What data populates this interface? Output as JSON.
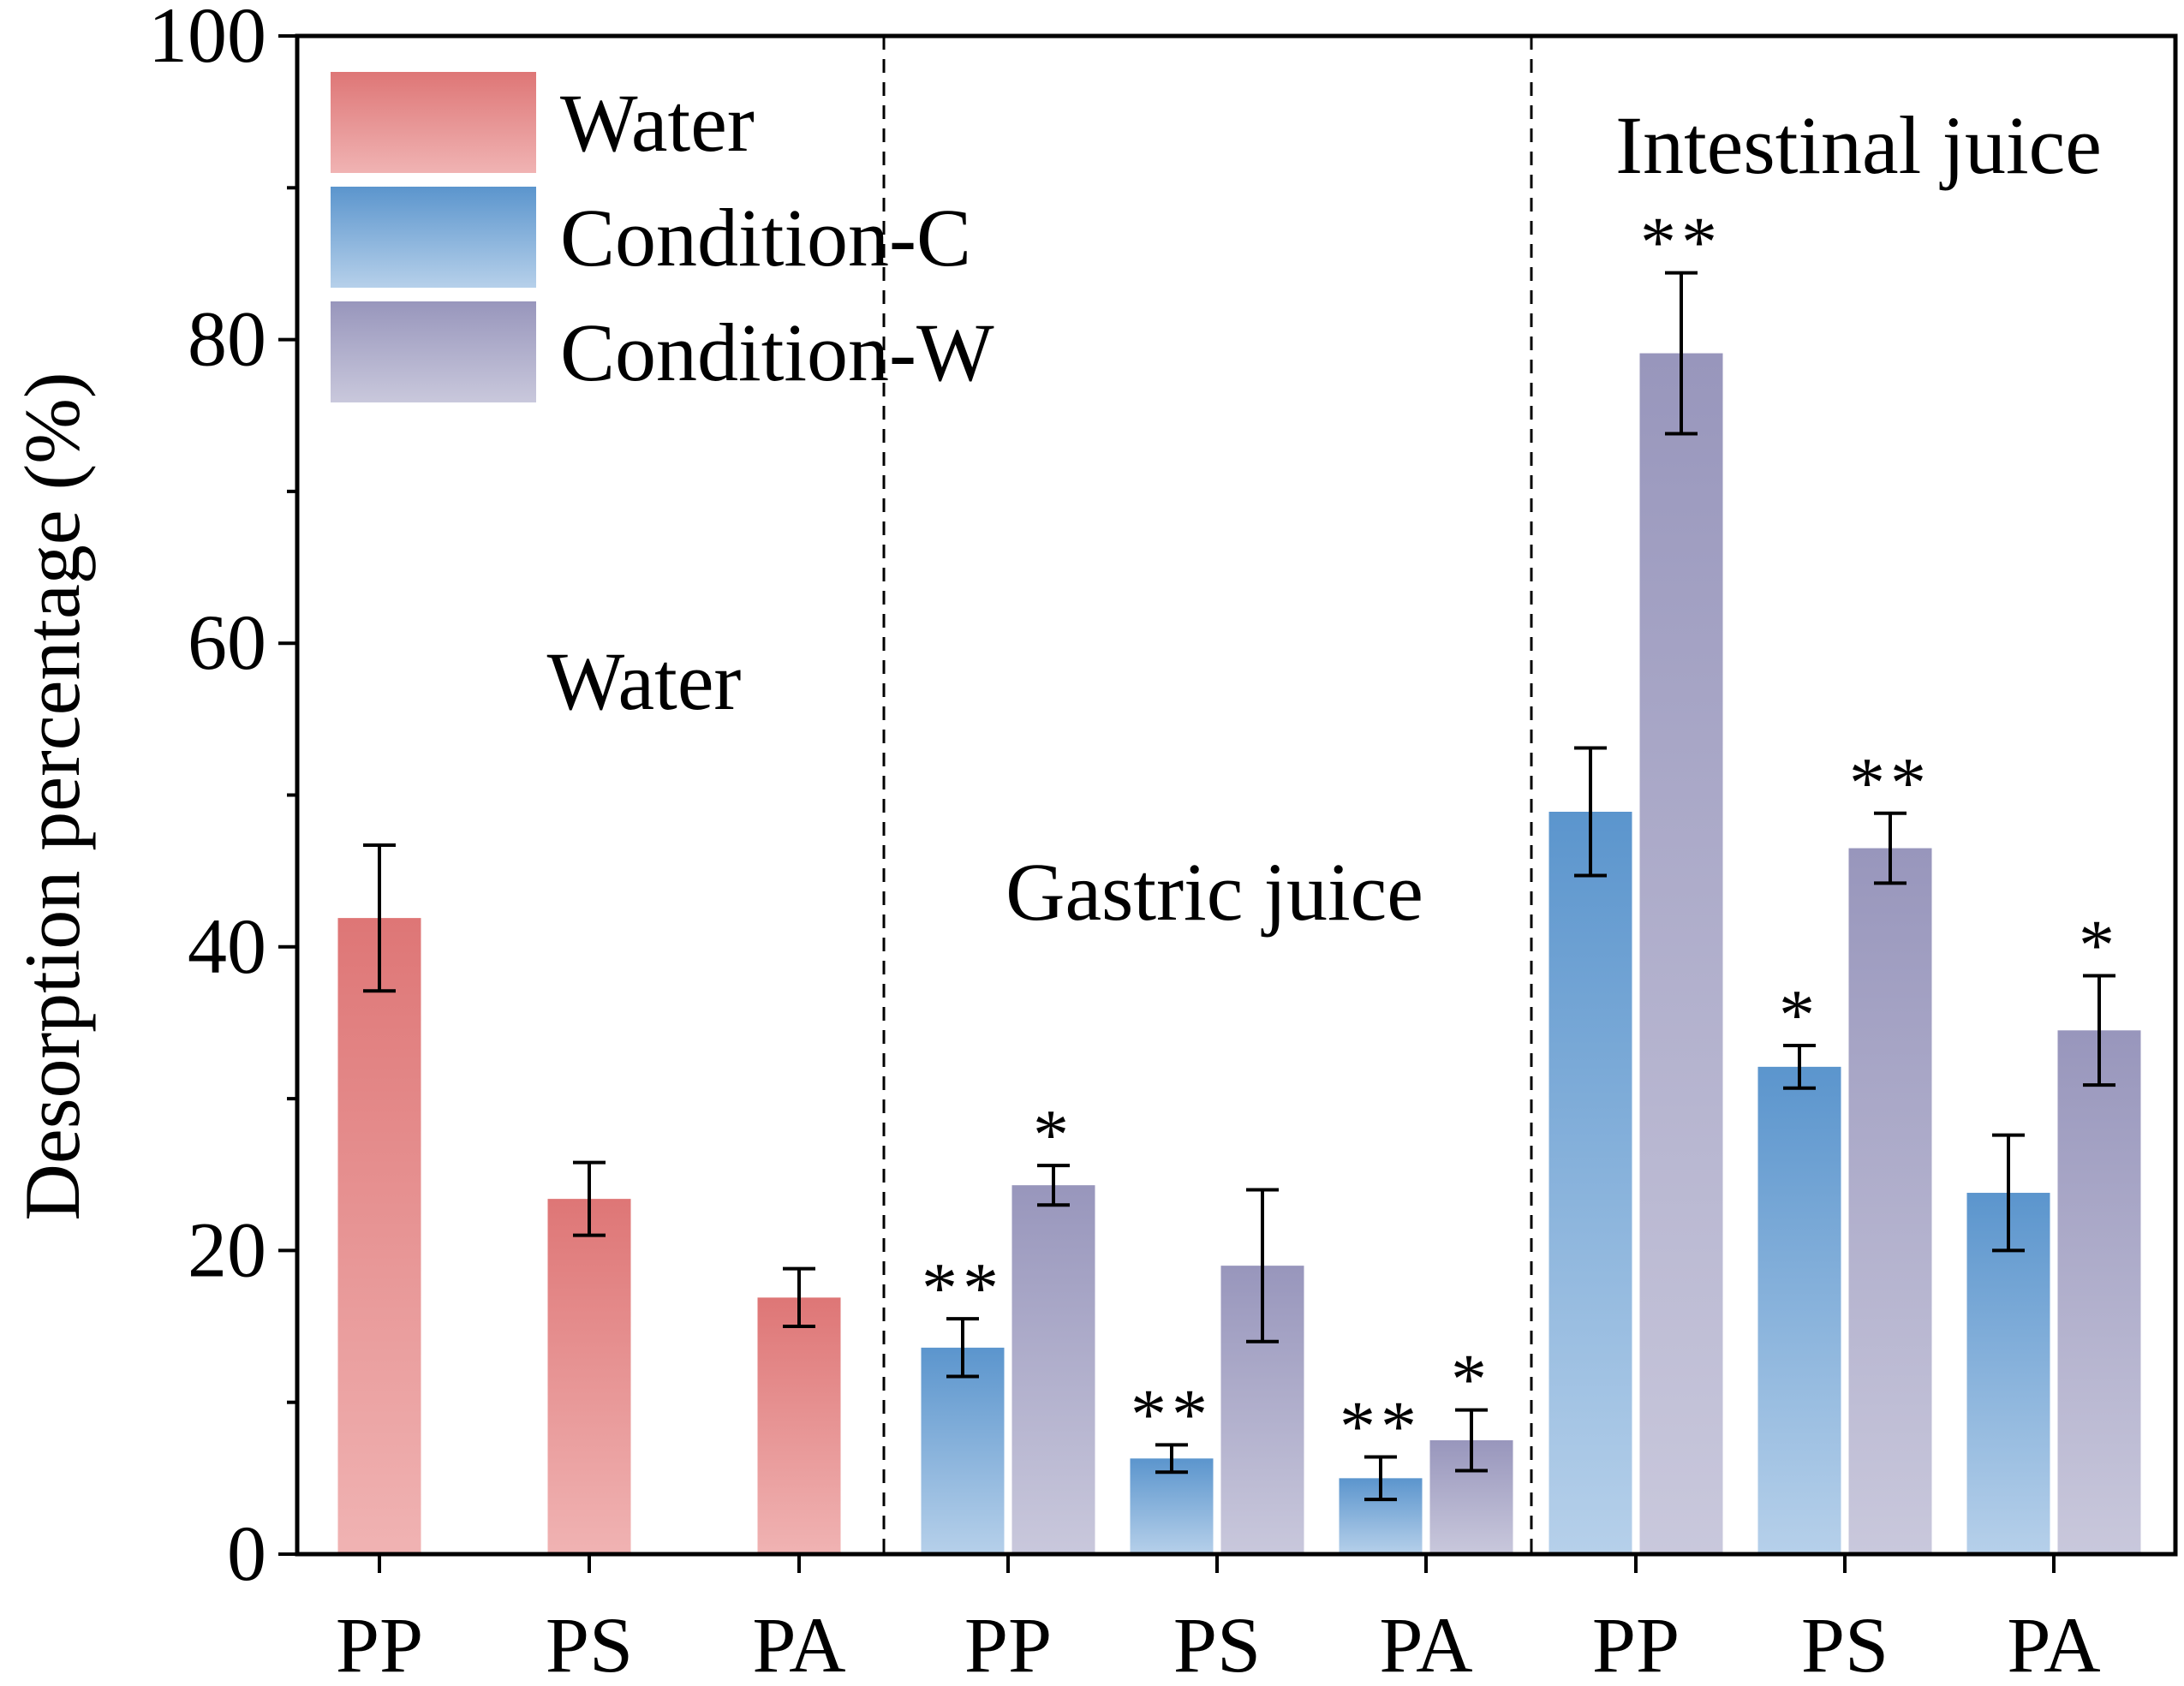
{
  "chart_data": {
    "type": "bar",
    "ylabel": "Desorption percentage (%)",
    "xlabel": "",
    "ylim": [
      0,
      100
    ],
    "yticks": [
      0,
      20,
      40,
      60,
      80,
      100
    ],
    "grid": false,
    "legend_position": "top-left",
    "legend": [
      {
        "name": "Water",
        "color_top": "#de7676",
        "color_bottom": "#f0b3b3"
      },
      {
        "name": "Condition-C",
        "color_top": "#5b95cd",
        "color_bottom": "#b6d0ea"
      },
      {
        "name": "Condition-W",
        "color_top": "#9896bc",
        "color_bottom": "#c9c8dc"
      }
    ],
    "groups": [
      {
        "label": "Water",
        "categories": [
          "PP",
          "PS",
          "PA"
        ],
        "series": [
          {
            "name": "Water",
            "values": [
              41.9,
              23.4,
              16.9
            ],
            "errors": [
              4.8,
              2.4,
              1.9
            ],
            "significance": [
              "",
              "",
              ""
            ]
          }
        ]
      },
      {
        "label": "Gastric juice",
        "categories": [
          "PP",
          "PS",
          "PA"
        ],
        "series": [
          {
            "name": "Condition-C",
            "values": [
              13.6,
              6.3,
              5.0
            ],
            "errors": [
              1.9,
              0.9,
              1.4
            ],
            "significance": [
              "**",
              "**",
              "**"
            ]
          },
          {
            "name": "Condition-W",
            "values": [
              24.3,
              19.0,
              7.5
            ],
            "errors": [
              1.3,
              5.0,
              2.0
            ],
            "significance": [
              "*",
              "",
              "*"
            ]
          }
        ]
      },
      {
        "label": "Intestinal juice",
        "categories": [
          "PP",
          "PS",
          "PA"
        ],
        "series": [
          {
            "name": "Condition-C",
            "values": [
              48.9,
              32.1,
              23.8
            ],
            "errors": [
              4.2,
              1.4,
              3.8
            ],
            "significance": [
              "",
              "*",
              ""
            ]
          },
          {
            "name": "Condition-W",
            "values": [
              79.1,
              46.5,
              34.5
            ],
            "errors": [
              5.3,
              2.3,
              3.6
            ],
            "significance": [
              "**",
              "**",
              "*"
            ]
          }
        ]
      }
    ]
  }
}
